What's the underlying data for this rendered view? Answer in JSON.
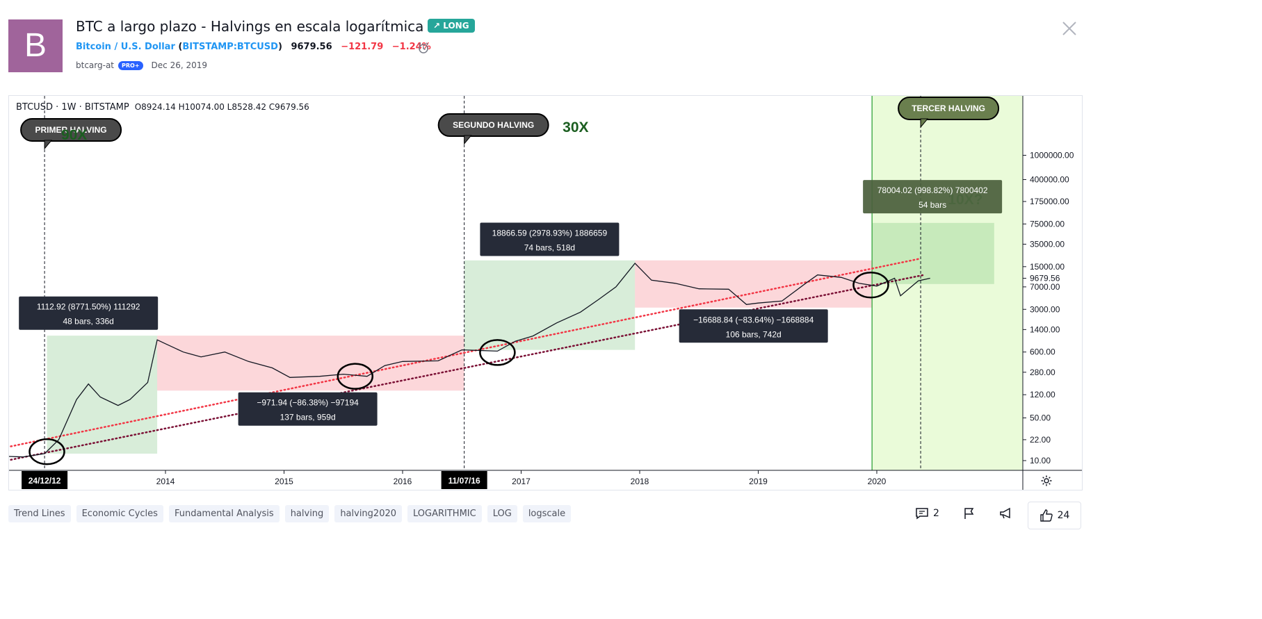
{
  "header": {
    "avatar_letter": "B",
    "title": "BTC a largo plazo - Halvings en escala logarítmica",
    "badge": "↗ LONG",
    "symbol_name": "Bitcoin / U.S. Dollar",
    "symbol_ticker": "BITSTAMP:BTCUSD",
    "price": "9679.56",
    "change": "−121.79",
    "change_pct": "−1.24%",
    "author": "btcarg-at",
    "author_badge": "PRO+",
    "date": "Dec 26, 2019"
  },
  "legend": {
    "symbol": "BTCUSD · 1W · BITSTAMP",
    "ohlc": "O8924.14  H10074.00  L8528.42  C9679.56"
  },
  "chart_data": {
    "type": "candlestick",
    "x_ticks": [
      "2014",
      "2015",
      "2016",
      "2017",
      "2018",
      "2019",
      "2020"
    ],
    "x_markers": [
      "24/12/12",
      "11/07/16"
    ],
    "y_scale": "log",
    "y_ticks": [
      "1000000.00",
      "400000.00",
      "175000.00",
      "75000.00",
      "35000.00",
      "15000.00",
      "7000.00",
      "3000.00",
      "1400.00",
      "600.00",
      "280.00",
      "120.00",
      "50.00",
      "22.00",
      "10.00"
    ],
    "last_price_label": "9679.56",
    "price_path": [
      [
        2012.5,
        12
      ],
      [
        2012.8,
        11.5
      ],
      [
        2012.98,
        13
      ],
      [
        2013.1,
        22
      ],
      [
        2013.25,
        100
      ],
      [
        2013.35,
        180
      ],
      [
        2013.45,
        110
      ],
      [
        2013.6,
        80
      ],
      [
        2013.7,
        100
      ],
      [
        2013.85,
        190
      ],
      [
        2013.93,
        950
      ],
      [
        2014.0,
        820
      ],
      [
        2014.15,
        600
      ],
      [
        2014.3,
        500
      ],
      [
        2014.5,
        600
      ],
      [
        2014.7,
        420
      ],
      [
        2014.9,
        330
      ],
      [
        2015.05,
        230
      ],
      [
        2015.3,
        240
      ],
      [
        2015.5,
        260
      ],
      [
        2015.7,
        240
      ],
      [
        2015.85,
        360
      ],
      [
        2016.0,
        420
      ],
      [
        2016.3,
        430
      ],
      [
        2016.5,
        650
      ],
      [
        2016.6,
        640
      ],
      [
        2016.8,
        620
      ],
      [
        2016.95,
        900
      ],
      [
        2017.1,
        1100
      ],
      [
        2017.3,
        1800
      ],
      [
        2017.5,
        2700
      ],
      [
        2017.65,
        4300
      ],
      [
        2017.8,
        7000
      ],
      [
        2017.96,
        17000
      ],
      [
        2018.1,
        9000
      ],
      [
        2018.3,
        8000
      ],
      [
        2018.5,
        6500
      ],
      [
        2018.75,
        6400
      ],
      [
        2018.9,
        3600
      ],
      [
        2019.0,
        3800
      ],
      [
        2019.2,
        4100
      ],
      [
        2019.4,
        8000
      ],
      [
        2019.5,
        11000
      ],
      [
        2019.7,
        10000
      ],
      [
        2019.85,
        8000
      ],
      [
        2020.0,
        7200
      ],
      [
        2020.15,
        9700
      ],
      [
        2020.2,
        5000
      ],
      [
        2020.35,
        8800
      ],
      [
        2020.45,
        9679.56
      ]
    ],
    "trend_lines": [
      {
        "color": "#f23645",
        "from": [
          2012.0,
          9
        ],
        "to": [
          2020.35,
          20000
        ]
      },
      {
        "color": "#7b1035",
        "from": [
          2012.0,
          5.5
        ],
        "to": [
          2020.4,
          11000
        ]
      }
    ],
    "zones": [
      {
        "kind": "up",
        "x0": 2013.0,
        "x1": 2013.93,
        "y0": 13,
        "y1": 1112.92
      },
      {
        "kind": "down",
        "x0": 2013.93,
        "x1": 2016.52,
        "y0": 140,
        "y1": 1112.92
      },
      {
        "kind": "up",
        "x0": 2016.52,
        "x1": 2017.96,
        "y0": 650,
        "y1": 19000
      },
      {
        "kind": "down",
        "x0": 2017.96,
        "x1": 2019.96,
        "y0": 3200,
        "y1": 19000
      },
      {
        "kind": "up",
        "x0": 2019.96,
        "x1": 2020.99,
        "y0": 7800,
        "y1": 78000
      }
    ],
    "highlight_region": {
      "x0": 2019.96,
      "x1": 2021.2
    },
    "halving_lines": [
      2012.98,
      2016.52,
      2020.37
    ],
    "callouts": [
      {
        "text": "PRIMER HALVING",
        "x": 2012.98
      },
      {
        "text": "SEGUNDO HALVING",
        "x": 2016.52
      },
      {
        "text": "TERCER HALVING",
        "x": 2020.37
      }
    ],
    "multiples": [
      {
        "text": "90X",
        "x": 2013.12,
        "color": "#1b5e20"
      },
      {
        "text": "30X",
        "x": 2017.35,
        "color": "#1b5e20"
      },
      {
        "text": "10X?",
        "x": 2020.6,
        "color": "#66bb6a"
      }
    ],
    "range_labels": [
      {
        "line1": "1112.92 (8771.50%) 111292",
        "line2": "48 bars, 336d",
        "x": 2013.35,
        "y": 2600
      },
      {
        "line1": "−971.94 (−86.38%) −97194",
        "line2": "137 bars, 959d",
        "x": 2015.2,
        "y": 70
      },
      {
        "line1": "18866.59 (2978.93%) 1886659",
        "line2": "74 bars, 518d",
        "x": 2017.24,
        "y": 42000
      },
      {
        "line1": "−16688.84 (−83.64%) −1668884",
        "line2": "106 bars, 742d",
        "x": 2018.96,
        "y": 1600
      },
      {
        "line1": "78004.02 (998.82%) 7800402",
        "line2": "54 bars",
        "x": 2020.47,
        "y": 210000
      }
    ],
    "circles": [
      [
        2013.0,
        14
      ],
      [
        2015.6,
        240
      ],
      [
        2016.8,
        590
      ],
      [
        2019.95,
        7500
      ]
    ]
  },
  "tags": [
    "Trend Lines",
    "Economic Cycles",
    "Fundamental Analysis",
    "halving",
    "halving2020",
    "LOGARITHMIC",
    "LOG",
    "logscale"
  ],
  "actions": {
    "comments": "2",
    "likes": "24"
  },
  "icons": [
    "alarm-clock-icon",
    "close-icon",
    "gear-icon",
    "comment-icon",
    "flag-icon",
    "megaphone-icon",
    "thumbs-up-icon"
  ]
}
